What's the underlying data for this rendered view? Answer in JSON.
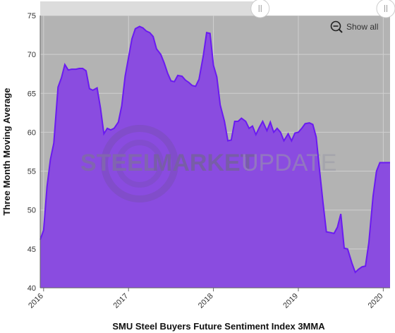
{
  "chart_data": {
    "type": "area",
    "title": "",
    "xlabel": "SMU Steel Buyers Future Sentiment Index 3MMA",
    "ylabel": "Three Month Moving Average",
    "ylim": [
      40,
      75
    ],
    "xlim": [
      2015.96,
      2020.08
    ],
    "y_ticks": [
      "40",
      "45",
      "50",
      "55",
      "60",
      "65",
      "70",
      "75"
    ],
    "x_ticks": [
      "2016",
      "2017",
      "2018",
      "2019",
      "2020"
    ],
    "grid": true,
    "fill_color": "#8a4ce0",
    "line_color": "#6a1bf0",
    "plot_background": "#b3b3b3",
    "series": [
      {
        "x": [
          2015.96,
          2016.0,
          2016.04,
          2016.08,
          2016.12,
          2016.17,
          2016.21,
          2016.25,
          2016.29,
          2016.33,
          2016.38,
          2016.42,
          2016.46,
          2016.5,
          2016.54,
          2016.58,
          2016.63,
          2016.67,
          2016.71,
          2016.75,
          2016.79,
          2016.83,
          2016.88,
          2016.92,
          2016.96,
          2017.0,
          2017.04,
          2017.08,
          2017.13,
          2017.17,
          2017.21,
          2017.25,
          2017.29,
          2017.33,
          2017.38,
          2017.42,
          2017.46,
          2017.5,
          2017.54,
          2017.58,
          2017.63,
          2017.67,
          2017.71,
          2017.75,
          2017.79,
          2017.83,
          2017.88,
          2017.92,
          2017.96,
          2018.0,
          2018.04,
          2018.08,
          2018.13,
          2018.17,
          2018.21,
          2018.25,
          2018.29,
          2018.33,
          2018.38,
          2018.42,
          2018.46,
          2018.5,
          2018.54,
          2018.58,
          2018.63,
          2018.67,
          2018.71,
          2018.75,
          2018.79,
          2018.83,
          2018.88,
          2018.92,
          2018.96,
          2019.0,
          2019.04,
          2019.08,
          2019.13,
          2019.17,
          2019.21,
          2019.25,
          2019.29,
          2019.33,
          2019.38,
          2019.42,
          2019.46,
          2019.5,
          2019.54,
          2019.58,
          2019.63,
          2019.67,
          2019.71,
          2019.75,
          2019.79,
          2019.83,
          2019.88,
          2019.92,
          2019.96,
          2020.0,
          2020.04,
          2020.08
        ],
        "values": [
          46.2,
          47.4,
          53.0,
          56.5,
          58.6,
          65.8,
          67.0,
          68.7,
          68.0,
          68.1,
          68.1,
          68.2,
          68.2,
          67.9,
          65.6,
          65.4,
          65.7,
          63.1,
          59.8,
          60.5,
          60.3,
          60.5,
          61.3,
          63.4,
          67.2,
          69.6,
          72.0,
          73.3,
          73.6,
          73.4,
          73.0,
          72.8,
          72.3,
          70.7,
          70.0,
          68.9,
          67.6,
          66.6,
          66.5,
          67.3,
          67.2,
          66.7,
          66.4,
          66.0,
          65.9,
          66.8,
          69.8,
          72.8,
          72.7,
          68.6,
          67.1,
          63.5,
          61.4,
          58.9,
          59.0,
          61.4,
          61.4,
          61.8,
          61.4,
          60.5,
          60.8,
          59.7,
          60.6,
          61.4,
          60.2,
          61.3,
          60.0,
          60.5,
          60.0,
          58.9,
          59.8,
          58.9,
          59.9,
          60.0,
          60.5,
          61.1,
          61.2,
          61.0,
          59.4,
          55.1,
          51.0,
          47.2,
          47.1,
          47.0,
          47.8,
          49.5,
          45.1,
          45.0,
          43.2,
          42.0,
          42.4,
          42.7,
          42.8,
          45.8,
          51.8,
          55.0,
          56.1,
          56.1,
          56.1,
          56.1
        ]
      }
    ]
  },
  "zoom": {
    "show_all_label": "Show all",
    "range_start": 0.0,
    "range_end": 0.62
  },
  "icons": {
    "zoom_out": "zoom-out-icon",
    "handle_left": "range-handle-left-icon",
    "handle_right": "range-handle-right-icon"
  },
  "watermark": {
    "brand_left": "STEEL",
    "brand_right": "MARKET",
    "brand_end": "UPDATE"
  }
}
